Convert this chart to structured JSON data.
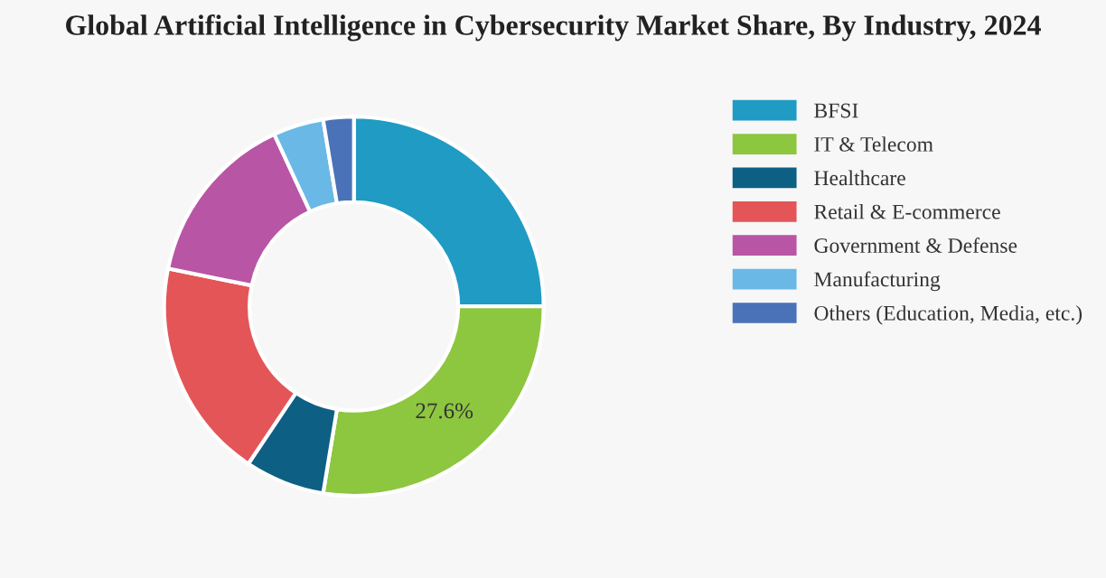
{
  "chart_data": {
    "type": "donut",
    "title": "Global Artificial Intelligence in Cybersecurity Market Share, By Industry, 2024",
    "categories": [
      "BFSI",
      "IT & Telecom",
      "Healthcare",
      "Retail & E-commerce",
      "Government & Defense",
      "Manufacturing",
      "Others (Education, Media, etc.)"
    ],
    "values": [
      25.0,
      27.6,
      6.8,
      18.8,
      14.9,
      4.3,
      2.6
    ],
    "value_labels": [
      null,
      "27.6%",
      null,
      null,
      null,
      null,
      null
    ],
    "colors": [
      "#1f9bc4",
      "#8dc63f",
      "#0e5f84",
      "#e45557",
      "#b955a5",
      "#6ab8e6",
      "#4a72b8"
    ],
    "legend": "right"
  }
}
